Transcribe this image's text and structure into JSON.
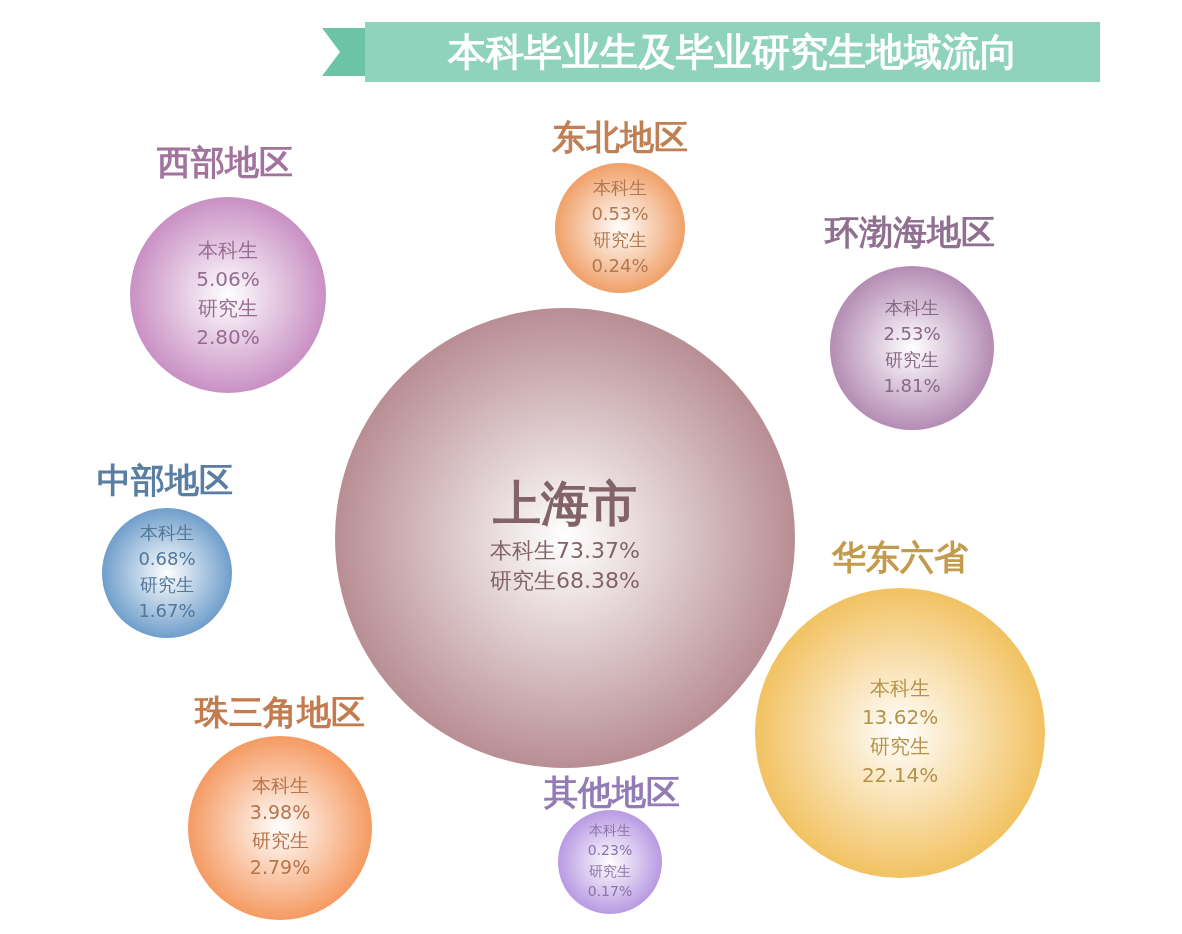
{
  "chart_data": {
    "type": "other",
    "title": "本科毕业生及毕业研究生地域流向",
    "categories": [
      "西部地区",
      "东北地区",
      "环渤海地区",
      "中部地区",
      "上海市",
      "华东六省",
      "珠三角地区",
      "其他地区"
    ],
    "colors": [
      "#c990c4",
      "#f0a068",
      "#b48cb4",
      "#6f9ecb",
      "#b88e94",
      "#f2c262",
      "#f59a62",
      "#b89ae2"
    ],
    "series": [
      {
        "name": "本科生",
        "values": [
          5.06,
          0.53,
          2.53,
          0.68,
          73.37,
          13.62,
          3.98,
          0.23
        ],
        "value_labels": [
          "5.06%",
          "0.53%",
          "2.53%",
          "0.68%",
          "73.37%",
          "13.62%",
          "3.98%",
          "0.23%"
        ]
      },
      {
        "name": "研究生",
        "values": [
          2.8,
          0.24,
          1.81,
          1.67,
          68.38,
          22.14,
          2.79,
          0.17
        ],
        "value_labels": [
          "2.80%",
          "0.24%",
          "1.81%",
          "1.67%",
          "68.38%",
          "22.14%",
          "2.79%",
          "0.17%"
        ]
      }
    ]
  }
}
